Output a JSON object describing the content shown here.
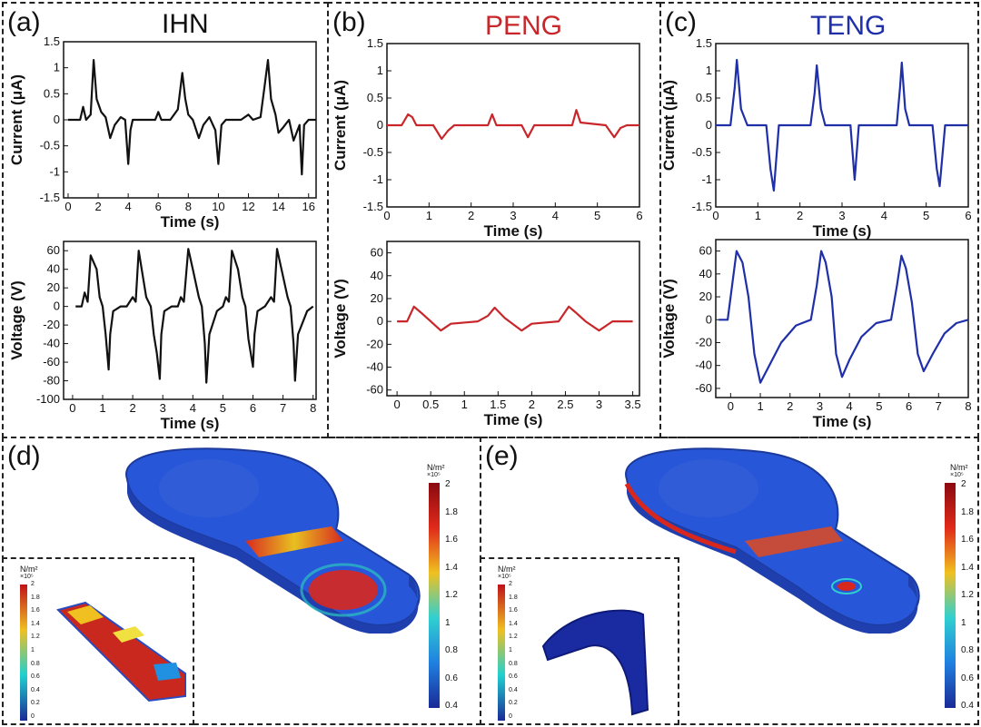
{
  "panels": {
    "a": {
      "label": "(a)",
      "title": "IHN",
      "title_color": "#111111"
    },
    "b": {
      "label": "(b)",
      "title": "PENG",
      "title_color": "#c8262a"
    },
    "c": {
      "label": "(c)",
      "title": "TENG",
      "title_color": "#1f2fa8"
    },
    "d": {
      "label": "(d)"
    },
    "e": {
      "label": "(e)"
    }
  },
  "chart_data": [
    {
      "id": "a-current",
      "type": "line",
      "xlabel": "Time (s)",
      "ylabel": "Current (μA)",
      "xlim": [
        -0.3,
        16.5
      ],
      "ylim": [
        -1.5,
        1.5
      ],
      "xticks": [
        "0",
        "2",
        "4",
        "6",
        "8",
        "10",
        "12",
        "14",
        "16"
      ],
      "yticks": [
        "-1.5",
        "-1",
        "-0.5",
        "0",
        "0.5",
        "1",
        "1.5"
      ],
      "color": "#111111",
      "series": [
        {
          "x": [
            0,
            0.8,
            1.0,
            1.2,
            1.5,
            1.7,
            1.9,
            2.2,
            2.5,
            2.8,
            3.1,
            3.5,
            3.8,
            4.0,
            4.15,
            4.3,
            5.0,
            5.8,
            6.0,
            6.2,
            6.8,
            7.3,
            7.6,
            7.8,
            8.0,
            8.3,
            8.7,
            9.0,
            9.4,
            9.8,
            10.0,
            10.2,
            10.5,
            11.5,
            12.0,
            12.3,
            12.8,
            13.1,
            13.3,
            13.5,
            13.8,
            14.0,
            14.3,
            14.7,
            15.0,
            15.4,
            15.55,
            15.7,
            16.0,
            16.5
          ],
          "y": [
            0,
            0,
            0.25,
            0,
            0.1,
            1.15,
            0.4,
            0.15,
            0.05,
            -0.35,
            -0.1,
            0.05,
            0,
            -0.85,
            -0.2,
            0,
            0,
            0,
            0.15,
            0,
            0,
            0.2,
            0.9,
            0.4,
            0.1,
            0,
            -0.35,
            -0.1,
            0.05,
            -0.2,
            -0.85,
            -0.1,
            0,
            0,
            0.1,
            0,
            0.05,
            0.7,
            1.15,
            0.4,
            0.1,
            -0.25,
            -0.15,
            0,
            -0.4,
            -0.1,
            -1.05,
            -0.1,
            0,
            0
          ]
        }
      ]
    },
    {
      "id": "a-voltage",
      "type": "line",
      "xlabel": "Time (s)",
      "ylabel": "Voltage (V)",
      "xlim": [
        -0.3,
        8.1
      ],
      "ylim": [
        -100,
        70
      ],
      "xticks": [
        "0",
        "1",
        "2",
        "3",
        "4",
        "5",
        "6",
        "7",
        "8"
      ],
      "yticks": [
        "-100",
        "-80",
        "-60",
        "-40",
        "-20",
        "0",
        "20",
        "40",
        "60"
      ],
      "color": "#111111",
      "series": [
        {
          "x": [
            0.1,
            0.3,
            0.4,
            0.5,
            0.6,
            0.8,
            0.9,
            1.0,
            1.1,
            1.2,
            1.25,
            1.35,
            1.6,
            1.8,
            2.0,
            2.1,
            2.2,
            2.3,
            2.45,
            2.6,
            2.7,
            2.8,
            2.9,
            2.95,
            3.05,
            3.3,
            3.5,
            3.6,
            3.7,
            3.85,
            4.0,
            4.2,
            4.3,
            4.4,
            4.45,
            4.55,
            4.8,
            5.0,
            5.1,
            5.2,
            5.3,
            5.5,
            5.65,
            5.75,
            5.85,
            6.0,
            6.05,
            6.15,
            6.4,
            6.6,
            6.7,
            6.8,
            6.95,
            7.15,
            7.25,
            7.35,
            7.4,
            7.5,
            7.8,
            8.0
          ],
          "y": [
            0,
            0,
            15,
            5,
            55,
            40,
            10,
            0,
            -30,
            -68,
            -30,
            -5,
            0,
            0,
            10,
            5,
            60,
            40,
            10,
            0,
            -30,
            -50,
            -78,
            -30,
            -5,
            0,
            0,
            10,
            5,
            62,
            40,
            10,
            0,
            -40,
            -82,
            -30,
            -5,
            0,
            10,
            5,
            60,
            40,
            10,
            0,
            -35,
            -65,
            -30,
            -5,
            0,
            10,
            5,
            62,
            40,
            10,
            0,
            -40,
            -80,
            -30,
            -5,
            0
          ]
        }
      ]
    },
    {
      "id": "b-current",
      "type": "line",
      "xlabel": "Time (s)",
      "ylabel": "Current (μA)",
      "xlim": [
        0,
        6
      ],
      "ylim": [
        -1.5,
        1.5
      ],
      "xticks": [
        "0",
        "1",
        "2",
        "3",
        "4",
        "5",
        "6"
      ],
      "yticks": [
        "-1.5",
        "-1",
        "-0.5",
        "0",
        "0.5",
        "1",
        "1.5"
      ],
      "color": "#c8262a",
      "series": [
        {
          "x": [
            0,
            0.35,
            0.5,
            0.6,
            0.7,
            1.1,
            1.3,
            1.45,
            1.6,
            2.4,
            2.5,
            2.6,
            3.2,
            3.35,
            3.5,
            4.4,
            4.5,
            4.6,
            5.2,
            5.4,
            5.55,
            5.7,
            6.0
          ],
          "y": [
            0,
            0,
            0.2,
            0.15,
            0,
            0,
            -0.25,
            -0.1,
            0,
            0,
            0.2,
            0,
            0,
            -0.22,
            0,
            0,
            0.28,
            0.05,
            0,
            -0.22,
            -0.05,
            0,
            0
          ]
        }
      ]
    },
    {
      "id": "b-voltage",
      "type": "line",
      "xlabel": "Time (s)",
      "ylabel": "Voltage (V)",
      "xlim": [
        -0.15,
        3.6
      ],
      "ylim": [
        -65,
        70
      ],
      "xticks": [
        "0",
        "0.5",
        "1",
        "1.5",
        "2",
        "2.5",
        "3",
        "3.5"
      ],
      "yticks": [
        "-60",
        "-40",
        "-20",
        "0",
        "20",
        "40",
        "60"
      ],
      "color": "#c8262a",
      "series": [
        {
          "x": [
            0,
            0.15,
            0.25,
            0.35,
            0.5,
            0.65,
            0.8,
            1.2,
            1.35,
            1.45,
            1.6,
            1.85,
            2.0,
            2.4,
            2.55,
            2.65,
            2.8,
            3.0,
            3.2,
            3.5
          ],
          "y": [
            0,
            0,
            13,
            8,
            0,
            -8,
            -2,
            0,
            5,
            12,
            3,
            -8,
            -2,
            0,
            13,
            8,
            0,
            -8,
            0,
            0
          ]
        }
      ]
    },
    {
      "id": "c-current",
      "type": "line",
      "xlabel": "Time (s)",
      "ylabel": "Current (μA)",
      "xlim": [
        0,
        6
      ],
      "ylim": [
        -1.5,
        1.5
      ],
      "xticks": [
        "0",
        "1",
        "2",
        "3",
        "4",
        "5",
        "6"
      ],
      "yticks": [
        "-1.5",
        "-1",
        "-0.5",
        "0",
        "0.5",
        "1",
        "1.5"
      ],
      "color": "#1f2fa8",
      "series": [
        {
          "x": [
            0,
            0.35,
            0.45,
            0.5,
            0.6,
            0.75,
            1.2,
            1.3,
            1.38,
            1.5,
            2.25,
            2.35,
            2.4,
            2.5,
            2.6,
            3.2,
            3.3,
            3.4,
            4.3,
            4.38,
            4.42,
            4.5,
            4.6,
            5.15,
            5.25,
            5.32,
            5.45,
            6.0
          ],
          "y": [
            0,
            0,
            0.7,
            1.2,
            0.3,
            0,
            0,
            -0.8,
            -1.2,
            0,
            0,
            0.6,
            1.1,
            0.3,
            0,
            0,
            -1.0,
            0,
            0,
            0.7,
            1.15,
            0.3,
            0,
            0,
            -0.8,
            -1.12,
            0,
            0
          ]
        }
      ]
    },
    {
      "id": "c-voltage",
      "type": "line",
      "xlabel": "Time (s)",
      "ylabel": "Voltage (V)",
      "xlim": [
        -0.5,
        8
      ],
      "ylim": [
        -68,
        70
      ],
      "xticks": [
        "0",
        "1",
        "2",
        "3",
        "4",
        "5",
        "6",
        "7",
        "8"
      ],
      "yticks": [
        "-60",
        "-40",
        "-20",
        "0",
        "20",
        "40",
        "60"
      ],
      "color": "#1f2fa8",
      "series": [
        {
          "x": [
            -0.4,
            -0.1,
            0.05,
            0.2,
            0.4,
            0.6,
            0.8,
            1.0,
            1.3,
            1.7,
            2.2,
            2.7,
            2.9,
            3.05,
            3.2,
            3.4,
            3.55,
            3.75,
            4.0,
            4.4,
            4.9,
            5.4,
            5.6,
            5.75,
            5.9,
            6.1,
            6.3,
            6.5,
            6.8,
            7.2,
            7.6,
            8.0
          ],
          "y": [
            0,
            0,
            30,
            60,
            50,
            20,
            -30,
            -55,
            -40,
            -20,
            -5,
            0,
            30,
            60,
            50,
            20,
            -30,
            -50,
            -35,
            -15,
            -3,
            0,
            30,
            56,
            45,
            15,
            -30,
            -45,
            -30,
            -12,
            -3,
            0
          ]
        }
      ]
    }
  ],
  "stress": {
    "unit": "N/m²",
    "scale": "×10⁵",
    "ticks": [
      "2",
      "1.8",
      "1.6",
      "1.4",
      "1.2",
      "1",
      "0.8",
      "0.6",
      "0.4"
    ],
    "inset_ticks": [
      "2",
      "1.8",
      "1.6",
      "1.4",
      "1.2",
      "1",
      "0.8",
      "0.6",
      "0.4",
      "0.2",
      "0"
    ],
    "colors": {
      "low": "#1a2a96",
      "high": "#c0121a"
    }
  }
}
